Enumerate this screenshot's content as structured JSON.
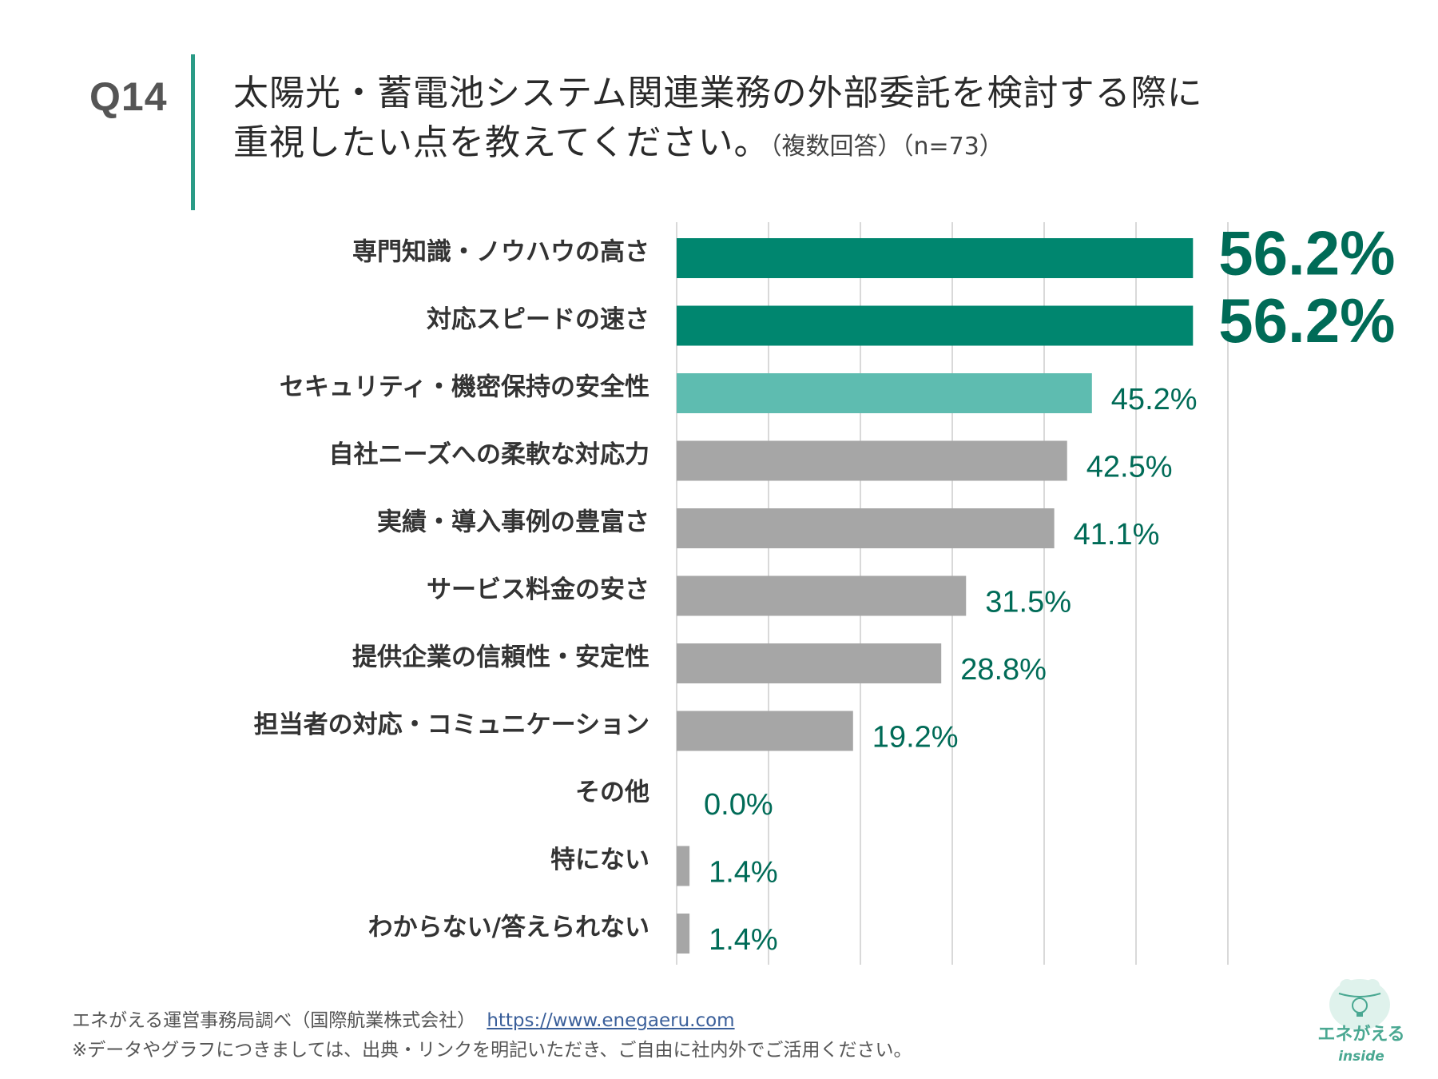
{
  "question": {
    "number": "Q14",
    "title_line1": "太陽光・蓄電池システム関連業務の外部委託を検討する際に",
    "title_line2": "重視したい点を教えてください。",
    "note": "（複数回答）（n=73）"
  },
  "colors": {
    "accent": "#00866f",
    "highlight": "#5ebcb0",
    "gray": "#a6a6a6",
    "value_text": "#006b57",
    "divider": "#2a9b86"
  },
  "chart_data": {
    "type": "bar",
    "orientation": "horizontal",
    "title": "太陽光・蓄電池システム関連業務の外部委託を検討する際に重視したい点を教えてください。",
    "categories": [
      "専門知識・ノウハウの高さ",
      "対応スピードの速さ",
      "セキュリティ・機密保持の安全性",
      "自社ニーズへの柔軟な対応力",
      "実績・導入事例の豊富さ",
      "サービス料金の安さ",
      "提供企業の信頼性・安定性",
      "担当者の対応・コミュニケーション",
      "その他",
      "特にない",
      "わからない/答えられない"
    ],
    "values": [
      56.2,
      56.2,
      45.2,
      42.5,
      41.1,
      31.5,
      28.8,
      19.2,
      0.0,
      1.4,
      1.4
    ],
    "value_labels": [
      "56.2%",
      "56.2%",
      "45.2%",
      "42.5%",
      "41.1%",
      "31.5%",
      "28.8%",
      "19.2%",
      "0.0%",
      "1.4%",
      "1.4%"
    ],
    "emphasis": [
      "top",
      "top",
      "second",
      "normal",
      "normal",
      "normal",
      "normal",
      "normal",
      "normal",
      "normal",
      "normal"
    ],
    "xlim": [
      0,
      60
    ],
    "grid_step": 10,
    "grid": true,
    "unit": "%"
  },
  "footer": {
    "source": "エネがえる運営事務局調べ（国際航業株式会社）",
    "url": "https://www.enegaeru.com",
    "notice": "※データやグラフにつきましては、出典・リンクを明記いただき、ご自由に社内外でご活用ください。"
  },
  "logo": {
    "name": "エネがえる",
    "sub": "inside"
  }
}
